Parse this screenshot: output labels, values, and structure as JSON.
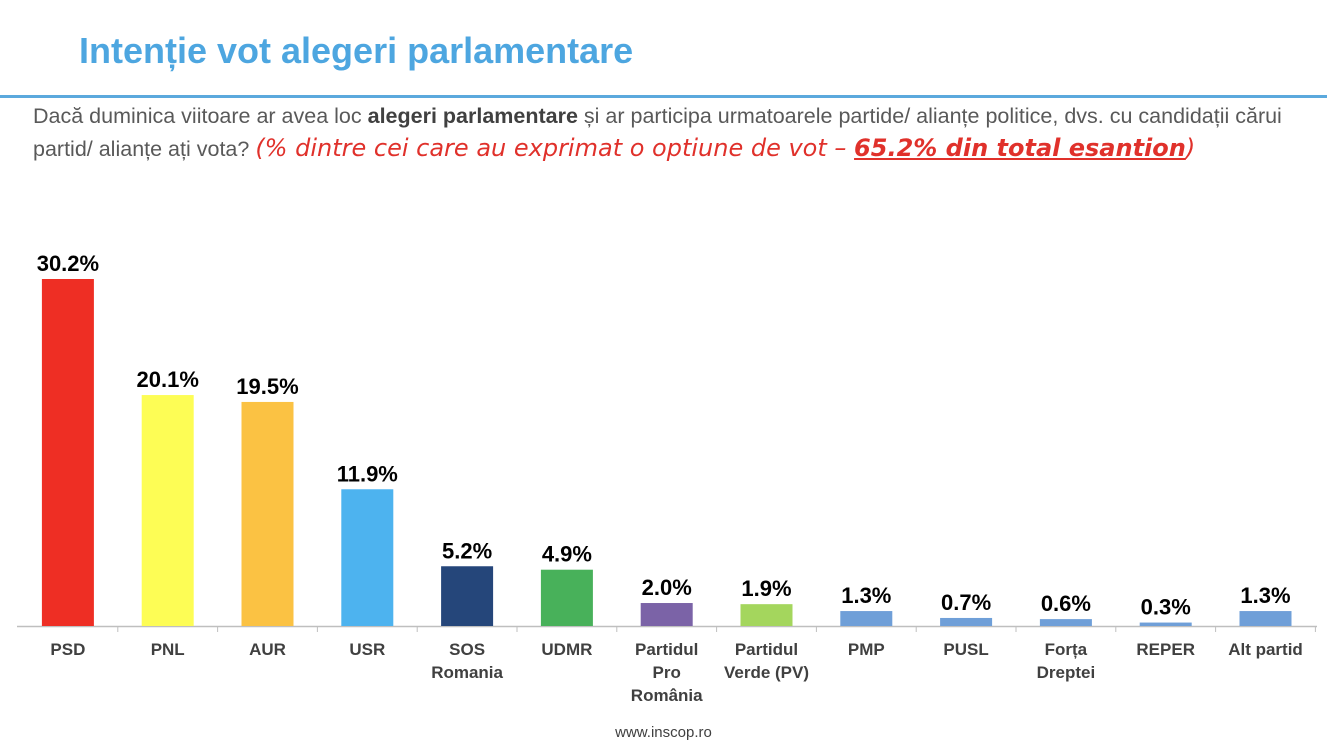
{
  "title": "Intenție vot alegeri parlamentare",
  "question": {
    "part1": "Dacă duminica viitoare ar avea loc ",
    "bold": "alegeri parlamentare",
    "part2": " și ar participa urmatoarele partide/ alianțe politice, dvs. cu candidații cărui partid/ alianțe ați vota? ",
    "note_prefix": "(% dintre cei care au exprimat o optiune de vot – ",
    "note_underlined": "65.2% din total esantion",
    "note_suffix": ")"
  },
  "footer": "www.inscop.ro",
  "chart_data": {
    "type": "bar",
    "categories": [
      [
        "PSD"
      ],
      [
        "PNL"
      ],
      [
        "AUR"
      ],
      [
        "USR"
      ],
      [
        "SOS",
        "Romania"
      ],
      [
        "UDMR"
      ],
      [
        "Partidul",
        "Pro",
        "România"
      ],
      [
        "Partidul",
        "Verde (PV)"
      ],
      [
        "PMP"
      ],
      [
        "PUSL"
      ],
      [
        "Forța",
        "Dreptei"
      ],
      [
        "REPER"
      ],
      [
        "Alt partid"
      ]
    ],
    "values": [
      30.2,
      20.1,
      19.5,
      11.9,
      5.2,
      4.9,
      2.0,
      1.9,
      1.3,
      0.7,
      0.6,
      0.3,
      1.3
    ],
    "labels": [
      "30.2%",
      "20.1%",
      "19.5%",
      "11.9%",
      "5.2%",
      "4.9%",
      "2.0%",
      "1.9%",
      "1.3%",
      "0.7%",
      "0.6%",
      "0.3%",
      "1.3%"
    ],
    "colors": [
      "#ee2e24",
      "#fdfd55",
      "#fbc243",
      "#4db3ef",
      "#25467a",
      "#48b15a",
      "#7b63a7",
      "#a4d65d",
      "#6f9fd8",
      "#6f9fd8",
      "#6f9fd8",
      "#6f9fd8",
      "#6f9fd8"
    ],
    "ylim": [
      0,
      30.2
    ],
    "grid": false
  }
}
